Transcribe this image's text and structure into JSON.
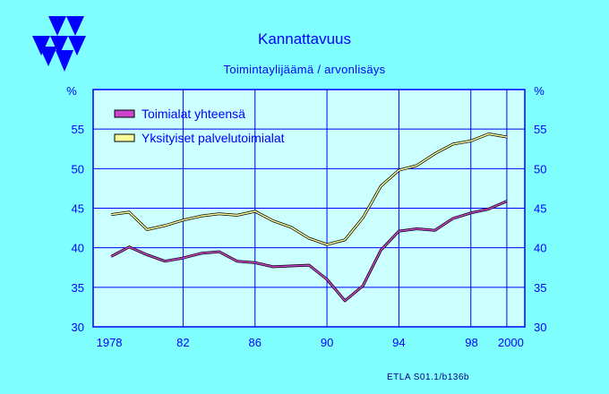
{
  "header": {
    "title": "Kannattavuus",
    "subtitle": "Toimintaylijäämä / arvonlisäys",
    "source": "ETLA S01.1/b136b"
  },
  "colors": {
    "background": "#7FFFFF",
    "plot_background": "#CCFFFF",
    "grid": "#0000FF",
    "text": "#0000FF",
    "series_1": "#CC44CC",
    "series_2": "#FFFF99"
  },
  "logo": {
    "icon": "etla-triangles-logo"
  },
  "chart_data": {
    "type": "line",
    "title": "Kannattavuus",
    "subtitle": "Toimintaylijäämä / arvonlisäys",
    "ylabel_left": "%",
    "ylabel_right": "%",
    "xlim": [
      1977,
      2001
    ],
    "ylim": [
      30,
      60
    ],
    "yticks": [
      30,
      35,
      40,
      45,
      50,
      55
    ],
    "xticks": [
      {
        "value": 1978,
        "label": "1978"
      },
      {
        "value": 1982,
        "label": "82"
      },
      {
        "value": 1986,
        "label": "86"
      },
      {
        "value": 1990,
        "label": "90"
      },
      {
        "value": 1994,
        "label": "94"
      },
      {
        "value": 1998,
        "label": "98"
      },
      {
        "value": 2000,
        "label": "2000"
      }
    ],
    "grid": true,
    "legend": "top-left",
    "x": [
      1978,
      1979,
      1980,
      1981,
      1982,
      1983,
      1984,
      1985,
      1986,
      1987,
      1988,
      1989,
      1990,
      1991,
      1992,
      1993,
      1994,
      1995,
      1996,
      1997,
      1998,
      1999,
      2000,
      2001
    ],
    "series": [
      {
        "name": "Toimialat yhteensä",
        "values": [
          38.9,
          40.1,
          39.1,
          38.3,
          38.7,
          39.3,
          39.5,
          38.3,
          38.1,
          37.6,
          37.7,
          37.8,
          36.0,
          33.3,
          35.2,
          39.7,
          42.1,
          42.4,
          42.2,
          43.7,
          44.4,
          44.9,
          45.9,
          null
        ]
      },
      {
        "name": "Yksityiset palvelutoimialat",
        "values": [
          44.2,
          44.5,
          42.3,
          42.8,
          43.5,
          44.0,
          44.3,
          44.1,
          44.6,
          43.4,
          42.6,
          41.2,
          40.4,
          41.0,
          43.8,
          47.8,
          49.8,
          50.4,
          51.9,
          53.1,
          53.5,
          54.4,
          54.0,
          null
        ]
      }
    ]
  }
}
